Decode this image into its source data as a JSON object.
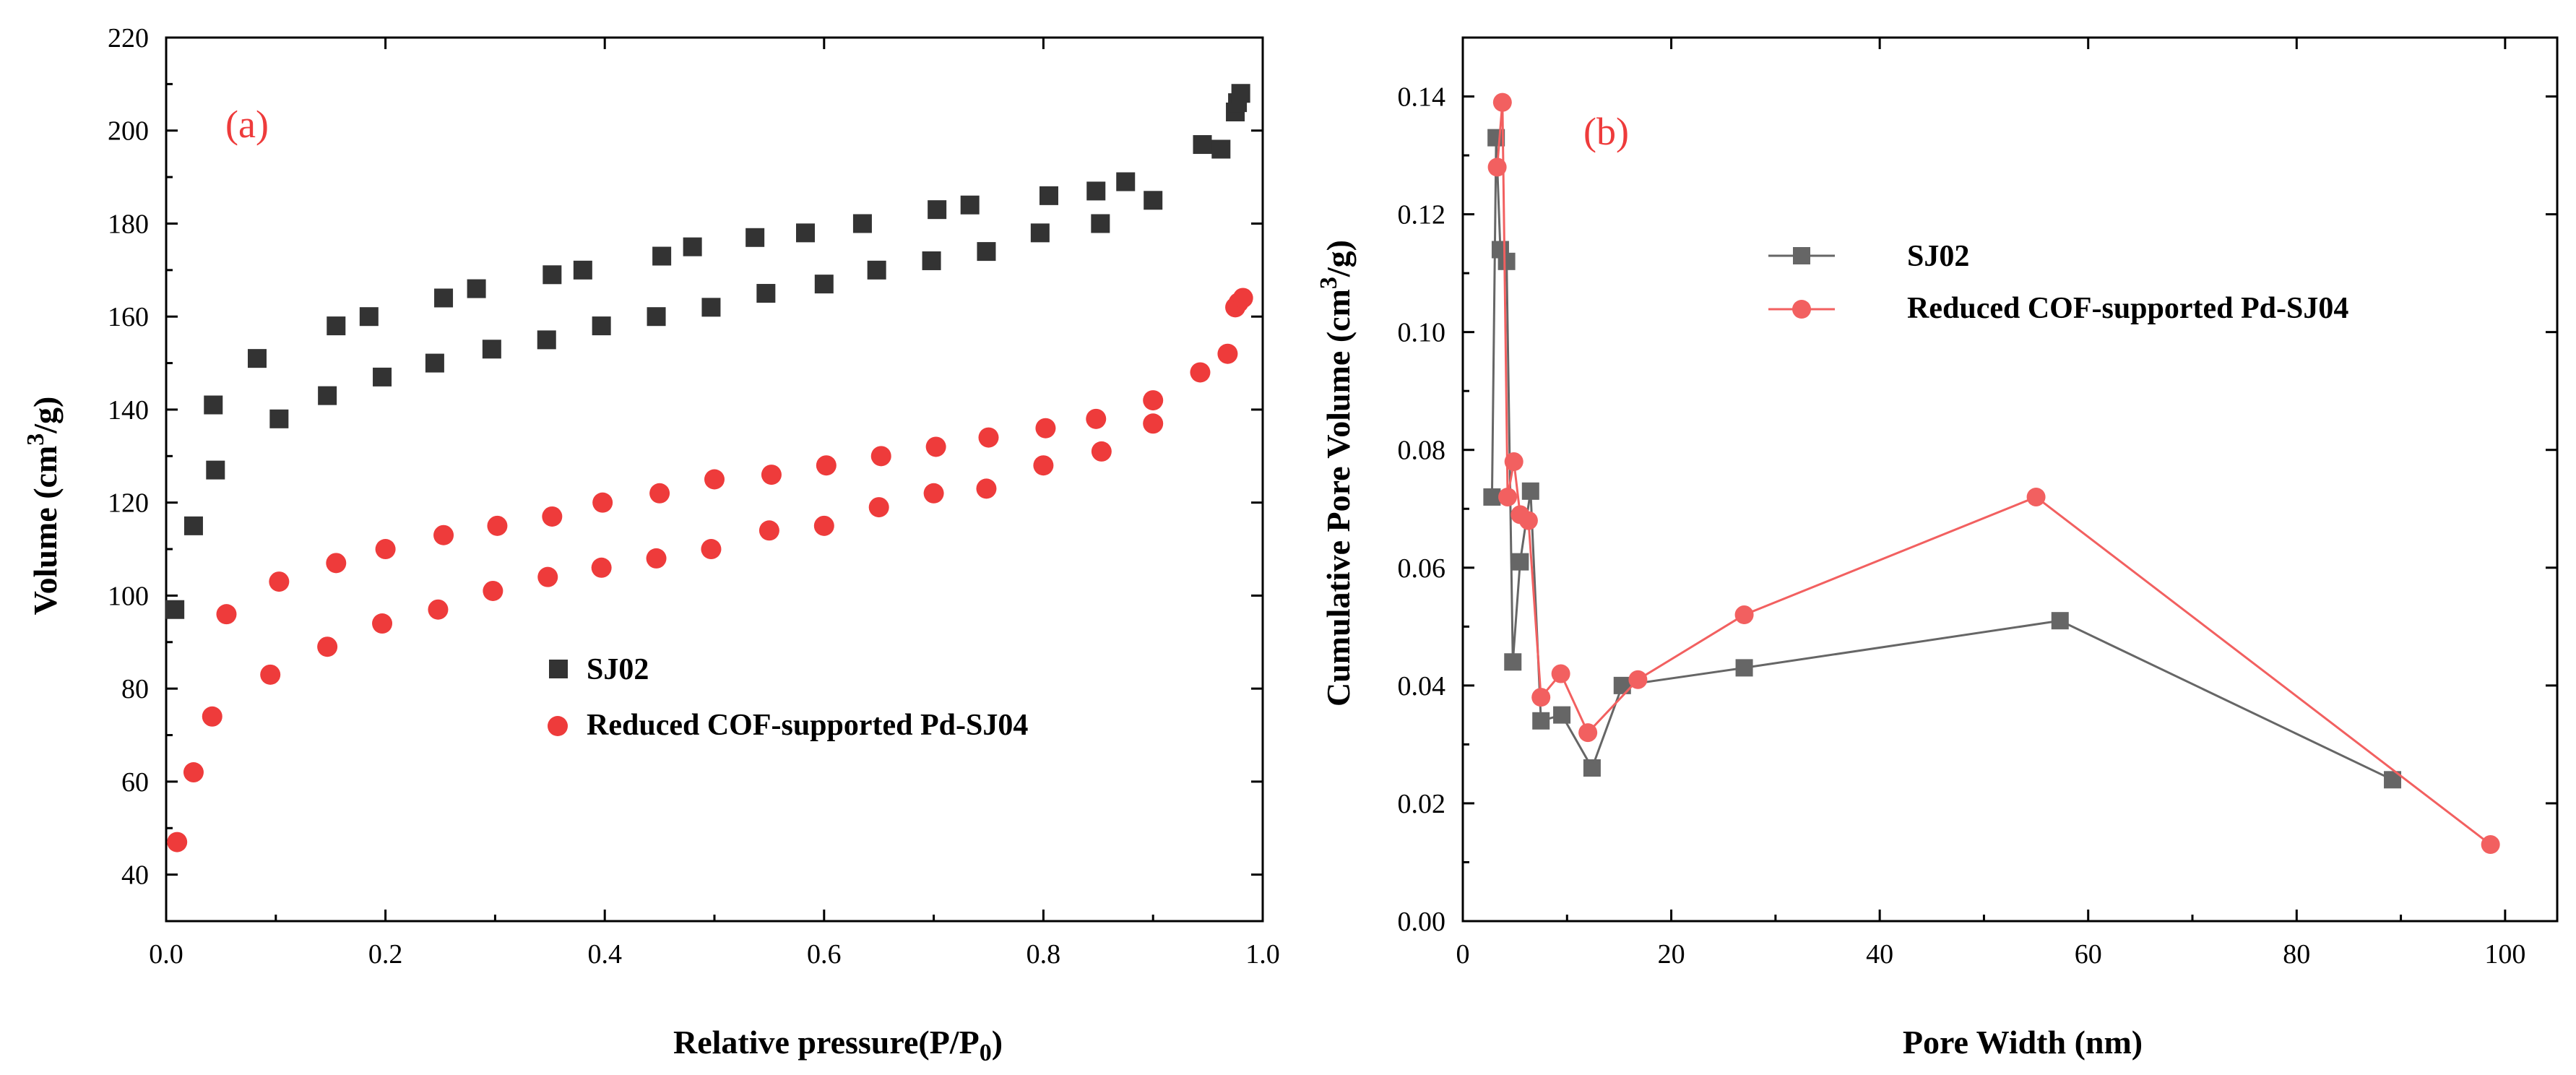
{
  "chart_data": [
    {
      "type": "scatter",
      "panel_label": "(a)",
      "xlabel_main": "Relative pressure(P/P",
      "xlabel_sub": "0",
      "xlabel_end": ")",
      "ylabel_main": "Volume (cm",
      "ylabel_sup": "3",
      "ylabel_end": "/g)",
      "xlim": [
        0.0,
        1.0
      ],
      "ylim": [
        30,
        220
      ],
      "xticks": [
        0.0,
        0.2,
        0.4,
        0.6,
        0.8,
        1.0
      ],
      "xtick_labels": [
        "0.0",
        "0.2",
        "0.4",
        "0.6",
        "0.8",
        "1.0"
      ],
      "yticks": [
        40,
        60,
        80,
        100,
        120,
        140,
        160,
        180,
        200,
        220
      ],
      "ytick_labels": [
        "40",
        "60",
        "80",
        "100",
        "120",
        "140",
        "160",
        "180",
        "200",
        "220"
      ],
      "legend_position": "center",
      "series": [
        {
          "name": "SJ02",
          "color": "#333333",
          "marker": "square",
          "points": [
            [
              0.008,
              97
            ],
            [
              0.025,
              115
            ],
            [
              0.045,
              127
            ],
            [
              0.043,
              141
            ],
            [
              0.083,
              151
            ],
            [
              0.103,
              138
            ],
            [
              0.147,
              143
            ],
            [
              0.155,
              158
            ],
            [
              0.185,
              160
            ],
            [
              0.197,
              147
            ],
            [
              0.245,
              150
            ],
            [
              0.253,
              164
            ],
            [
              0.283,
              166
            ],
            [
              0.297,
              153
            ],
            [
              0.347,
              155
            ],
            [
              0.352,
              169
            ],
            [
              0.38,
              170
            ],
            [
              0.397,
              158
            ],
            [
              0.447,
              160
            ],
            [
              0.452,
              173
            ],
            [
              0.48,
              175
            ],
            [
              0.497,
              162
            ],
            [
              0.537,
              177
            ],
            [
              0.547,
              165
            ],
            [
              0.583,
              178
            ],
            [
              0.6,
              167
            ],
            [
              0.635,
              180
            ],
            [
              0.648,
              170
            ],
            [
              0.698,
              172
            ],
            [
              0.703,
              183
            ],
            [
              0.733,
              184
            ],
            [
              0.748,
              174
            ],
            [
              0.797,
              178
            ],
            [
              0.805,
              186
            ],
            [
              0.848,
              187
            ],
            [
              0.852,
              180
            ],
            [
              0.875,
              189
            ],
            [
              0.9,
              185
            ],
            [
              0.945,
              197
            ],
            [
              0.962,
              196
            ],
            [
              0.975,
              204
            ],
            [
              0.977,
              206
            ],
            [
              0.98,
              208
            ]
          ]
        },
        {
          "name": "Reduced COF-supported Pd-SJ04",
          "color": "#ee3b3b",
          "marker": "circle",
          "points": [
            [
              0.01,
              47
            ],
            [
              0.025,
              62
            ],
            [
              0.042,
              74
            ],
            [
              0.055,
              96
            ],
            [
              0.095,
              83
            ],
            [
              0.103,
              103
            ],
            [
              0.147,
              89
            ],
            [
              0.155,
              107
            ],
            [
              0.197,
              94
            ],
            [
              0.2,
              110
            ],
            [
              0.248,
              97
            ],
            [
              0.253,
              113
            ],
            [
              0.298,
              101
            ],
            [
              0.302,
              115
            ],
            [
              0.348,
              104
            ],
            [
              0.352,
              117
            ],
            [
              0.397,
              106
            ],
            [
              0.398,
              120
            ],
            [
              0.447,
              108
            ],
            [
              0.45,
              122
            ],
            [
              0.497,
              110
            ],
            [
              0.5,
              125
            ],
            [
              0.55,
              114
            ],
            [
              0.552,
              126
            ],
            [
              0.6,
              115
            ],
            [
              0.602,
              128
            ],
            [
              0.65,
              119
            ],
            [
              0.652,
              130
            ],
            [
              0.7,
              122
            ],
            [
              0.702,
              132
            ],
            [
              0.748,
              123
            ],
            [
              0.75,
              134
            ],
            [
              0.8,
              128
            ],
            [
              0.802,
              136
            ],
            [
              0.848,
              138
            ],
            [
              0.853,
              131
            ],
            [
              0.9,
              137
            ],
            [
              0.9,
              142
            ],
            [
              0.943,
              148
            ],
            [
              0.968,
              152
            ],
            [
              0.975,
              162
            ],
            [
              0.978,
              163
            ],
            [
              0.982,
              164
            ]
          ]
        }
      ]
    },
    {
      "type": "line",
      "panel_label": "(b)",
      "xlabel": "Pore Width (nm)",
      "ylabel_main": "Cumulative Pore Volume (cm",
      "ylabel_sup": "3",
      "ylabel_end": "/g)",
      "xlim": [
        0,
        105
      ],
      "ylim": [
        0.0,
        0.15
      ],
      "xticks": [
        0,
        20,
        40,
        60,
        80,
        100
      ],
      "xtick_labels": [
        "0",
        "20",
        "40",
        "60",
        "80",
        "100"
      ],
      "yticks": [
        0.0,
        0.02,
        0.04,
        0.06,
        0.08,
        0.1,
        0.12,
        0.14
      ],
      "ytick_labels": [
        "0.00",
        "0.02",
        "0.04",
        "0.06",
        "0.08",
        "0.10",
        "0.12",
        "0.14"
      ],
      "legend_position": "top-center",
      "series": [
        {
          "name": "SJ02",
          "color": "#666666",
          "marker": "square",
          "points": [
            [
              2.8,
              0.072
            ],
            [
              3.2,
              0.133
            ],
            [
              3.6,
              0.114
            ],
            [
              4.2,
              0.112
            ],
            [
              4.8,
              0.044
            ],
            [
              5.5,
              0.061
            ],
            [
              6.5,
              0.073
            ],
            [
              7.5,
              0.034
            ],
            [
              9.5,
              0.035
            ],
            [
              12.4,
              0.026
            ],
            [
              15.3,
              0.04
            ],
            [
              27.0,
              0.043
            ],
            [
              57.3,
              0.051
            ],
            [
              89.2,
              0.024
            ]
          ]
        },
        {
          "name": "Reduced COF-supported Pd-SJ04",
          "color": "#f26060",
          "marker": "circle",
          "points": [
            [
              3.3,
              0.128
            ],
            [
              3.8,
              0.139
            ],
            [
              4.3,
              0.072
            ],
            [
              4.9,
              0.078
            ],
            [
              5.5,
              0.069
            ],
            [
              6.3,
              0.068
            ],
            [
              7.5,
              0.038
            ],
            [
              9.4,
              0.042
            ],
            [
              12.0,
              0.032
            ],
            [
              16.8,
              0.041
            ],
            [
              27.0,
              0.052
            ],
            [
              55.0,
              0.072
            ],
            [
              98.6,
              0.013
            ]
          ]
        }
      ]
    }
  ]
}
